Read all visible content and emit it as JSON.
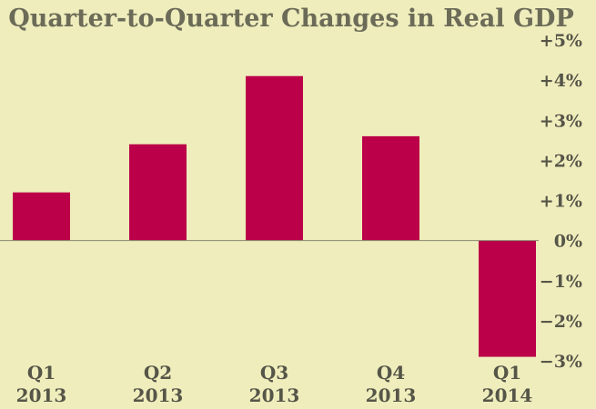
{
  "colors": {
    "background": "#efedbc",
    "bar": "#bb0049",
    "text": "#555548",
    "title": "#6b6b58"
  },
  "chart_data": {
    "type": "bar",
    "title": "Quarter-to-Quarter Changes in Real GDP",
    "xlabel": "",
    "ylabel": "",
    "categories": [
      {
        "quarter": "Q1",
        "year": "2013"
      },
      {
        "quarter": "Q2",
        "year": "2013"
      },
      {
        "quarter": "Q3",
        "year": "2013"
      },
      {
        "quarter": "Q4",
        "year": "2013"
      },
      {
        "quarter": "Q1",
        "year": "2014"
      }
    ],
    "values": [
      1.2,
      2.4,
      4.1,
      2.6,
      -2.9
    ],
    "ylim": [
      -3,
      5
    ],
    "yticks": [
      {
        "value": 5,
        "label": "+5%"
      },
      {
        "value": 4,
        "label": "+4%"
      },
      {
        "value": 3,
        "label": "+3%"
      },
      {
        "value": 2,
        "label": "+2%"
      },
      {
        "value": 1,
        "label": "+1%"
      },
      {
        "value": 0,
        "label": "0%"
      },
      {
        "value": -1,
        "label": "−1%"
      },
      {
        "value": -2,
        "label": "−2%"
      },
      {
        "value": -3,
        "label": "−3%"
      }
    ],
    "grid": false,
    "legend": "none",
    "y_axis_side": "right"
  }
}
